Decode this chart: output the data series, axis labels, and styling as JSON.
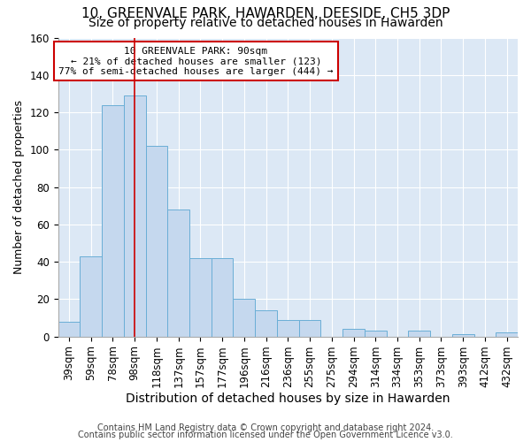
{
  "title": "10, GREENVALE PARK, HAWARDEN, DEESIDE, CH5 3DP",
  "subtitle": "Size of property relative to detached houses in Hawarden",
  "xlabel": "Distribution of detached houses by size in Hawarden",
  "ylabel": "Number of detached properties",
  "bar_color": "#c5d8ee",
  "bar_edge_color": "#6aaed6",
  "background_color": "#dce8f5",
  "grid_color": "#ffffff",
  "categories": [
    "39sqm",
    "59sqm",
    "78sqm",
    "98sqm",
    "118sqm",
    "137sqm",
    "157sqm",
    "177sqm",
    "196sqm",
    "216sqm",
    "236sqm",
    "255sqm",
    "275sqm",
    "294sqm",
    "314sqm",
    "334sqm",
    "353sqm",
    "373sqm",
    "393sqm",
    "412sqm",
    "432sqm"
  ],
  "values": [
    8,
    43,
    124,
    129,
    102,
    68,
    42,
    42,
    20,
    14,
    9,
    9,
    0,
    4,
    3,
    0,
    3,
    0,
    1,
    0,
    2
  ],
  "ylim": [
    0,
    160
  ],
  "yticks": [
    0,
    20,
    40,
    60,
    80,
    100,
    120,
    140,
    160
  ],
  "annotation_line1": "10 GREENVALE PARK: 90sqm",
  "annotation_line2": "← 21% of detached houses are smaller (123)",
  "annotation_line3": "77% of semi-detached houses are larger (444) →",
  "annotation_box_color": "#ffffff",
  "annotation_box_edge_color": "#cc0000",
  "vline_color": "#cc0000",
  "vline_x": 3.0,
  "footer_line1": "Contains HM Land Registry data © Crown copyright and database right 2024.",
  "footer_line2": "Contains public sector information licensed under the Open Government Licence v3.0.",
  "title_fontsize": 11,
  "subtitle_fontsize": 10,
  "ylabel_fontsize": 9,
  "xlabel_fontsize": 10,
  "tick_fontsize": 8.5,
  "footer_fontsize": 7
}
